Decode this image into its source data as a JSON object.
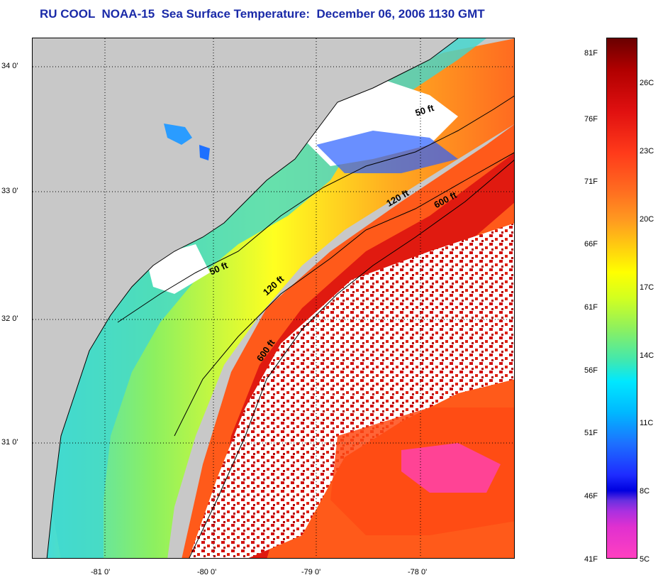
{
  "title": "RU COOL  NOAA-15  Sea Surface Temperature:  December 06, 2006 1130 GMT",
  "lat_ticks": [
    "34 0'",
    "33 0'",
    "32 0'",
    "31 0'"
  ],
  "lon_ticks": [
    "-81 0'",
    "-80 0'",
    "-79 0'",
    "-78 0'"
  ],
  "colorbar": {
    "fahrenheit_labels": [
      "81F",
      "76F",
      "71F",
      "66F",
      "61F",
      "56F",
      "51F",
      "46F",
      "41F"
    ],
    "celsius_labels": [
      "26C",
      "23C",
      "20C",
      "17C",
      "14C",
      "11C",
      "8C",
      "5C"
    ]
  },
  "depth_contours": {
    "label_50": "50 ft",
    "label_120": "120 ft",
    "label_600": "600 ft"
  },
  "colors": {
    "land": "#c8c8c8",
    "title": "#1a2aa8",
    "warm": "#e01010",
    "mid": "#ff9a20",
    "cool": "#00e8ff"
  }
}
